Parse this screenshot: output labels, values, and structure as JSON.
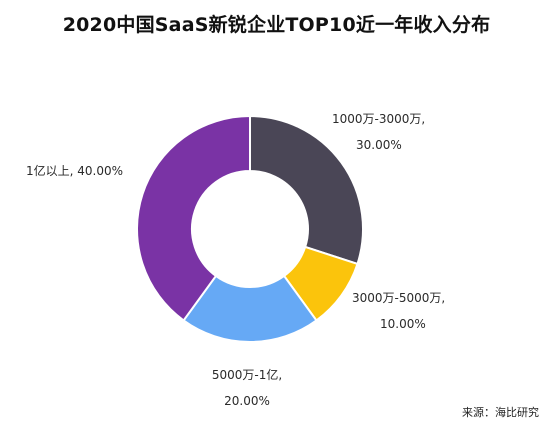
{
  "chart_data": {
    "type": "pie",
    "title": "2020中国SaaS新锐企业TOP10近一年收入分布",
    "donut": true,
    "slices": [
      {
        "name": "1000万-3000万",
        "value": 30.0,
        "value_label": "30.00%",
        "color": "#4a4656"
      },
      {
        "name": "3000万-5000万",
        "value": 10.0,
        "value_label": "10.00%",
        "color": "#fbc40c"
      },
      {
        "name": "5000万-1亿",
        "value": 20.0,
        "value_label": "20.00%",
        "color": "#66a9f5"
      },
      {
        "name": "1亿以上",
        "value": 40.0,
        "value_label": "40.00%",
        "color": "#7a33a5"
      }
    ],
    "source": "来源：海比研究"
  }
}
